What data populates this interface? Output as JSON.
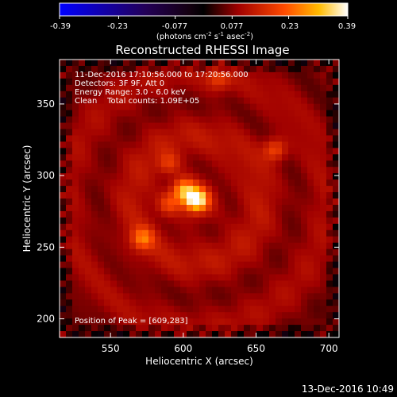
{
  "colorbar": {
    "ticks": [
      "-0.39",
      "-0.23",
      "-0.077",
      "0.077",
      "0.23",
      "0.39"
    ],
    "tick_values": [
      -0.39,
      -0.23,
      -0.077,
      0.077,
      0.23,
      0.39
    ],
    "range": [
      -0.39,
      0.39
    ],
    "unit_main": "(photons cm",
    "unit_sup1": "-2",
    "unit_mid1": " s",
    "unit_sup2": "-1",
    "unit_mid2": " asec",
    "unit_sup3": "-2",
    "unit_end": ")"
  },
  "chart_data": {
    "type": "heatmap",
    "title": "Reconstructed RHESSI Image",
    "xlabel": "Heliocentric X (arcsec)",
    "ylabel": "Heliocentric Y (arcsec)",
    "xlim": [
      515,
      707
    ],
    "ylim": [
      187,
      381
    ],
    "x_ticks": [
      550,
      600,
      650,
      700
    ],
    "y_ticks": [
      200,
      250,
      300,
      350
    ],
    "x_tick_labels": [
      "550",
      "600",
      "650",
      "700"
    ],
    "y_tick_labels": [
      "200",
      "250",
      "300",
      "350"
    ],
    "colormap": [
      "#0000ff",
      "#1a0044",
      "#000000",
      "#cc0000",
      "#ff8800",
      "#ffffff"
    ],
    "annotations": [
      "11-Dec-2016 17:10:56.000 to 17:20:56.000",
      "Detectors: 3F 9F, Att 0",
      "Energy Range: 3.0 - 6.0 keV",
      "Clean    Total counts: 1.09E+05"
    ],
    "peak_label": "Position of Peak = [609,283]",
    "peak": [
      609,
      283
    ],
    "peak_value": 0.39,
    "sources": [
      {
        "x": 609,
        "y": 283,
        "value": 0.39
      },
      {
        "x": 600,
        "y": 290,
        "value": 0.3
      },
      {
        "x": 590,
        "y": 280,
        "value": 0.22
      },
      {
        "x": 572,
        "y": 256,
        "value": 0.25
      },
      {
        "x": 663,
        "y": 318,
        "value": 0.24
      },
      {
        "x": 624,
        "y": 367,
        "value": 0.2
      },
      {
        "x": 590,
        "y": 308,
        "value": 0.2
      }
    ]
  },
  "footer": {
    "timestamp": "13-Dec-2016 10:49"
  }
}
